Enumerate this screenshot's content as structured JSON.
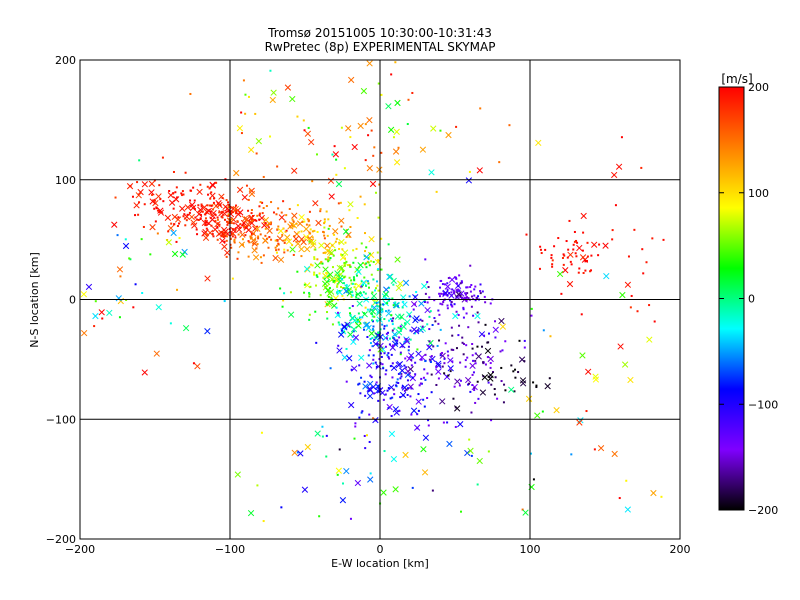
{
  "chart_data": {
    "type": "scatter",
    "title": "Tromsø 20151005 10:30:00-10:31:43",
    "subtitle": "RwPretec (8p) EXPERIMENTAL SKYMAP",
    "xlabel": "E-W location [km]",
    "ylabel": "N-S location [km]",
    "xlim": [
      -200,
      200
    ],
    "ylim": [
      -200,
      200
    ],
    "xticks": [
      -200,
      -100,
      0,
      100,
      200
    ],
    "yticks": [
      -200,
      -100,
      0,
      100,
      200
    ],
    "grid": true,
    "colorbar": {
      "label": "[m/s]",
      "min": -200,
      "max": 200,
      "ticks": [
        200,
        100,
        0,
        -100,
        -200
      ],
      "colormap": [
        "#000000",
        "#7f00ff",
        "#0000ff",
        "#00ffff",
        "#00ff00",
        "#ffff00",
        "#ff7f00",
        "#ff0000"
      ]
    },
    "marker_types": [
      "dot",
      "cross"
    ],
    "clusters": [
      {
        "name": "nw-red",
        "cx": -100,
        "cy": 65,
        "sx": 14,
        "sy": 10,
        "v": 185,
        "sv": 12,
        "n": 170,
        "cross": 0.35
      },
      {
        "name": "nw-orange",
        "cx": -75,
        "cy": 55,
        "sx": 18,
        "sy": 14,
        "v": 150,
        "sv": 15,
        "n": 130,
        "cross": 0.3
      },
      {
        "name": "nw-band-red",
        "cx": -135,
        "cy": 80,
        "sx": 18,
        "sy": 14,
        "v": 190,
        "sv": 10,
        "n": 110,
        "cross": 0.3
      },
      {
        "name": "north-yellow",
        "cx": -40,
        "cy": 50,
        "sx": 18,
        "sy": 18,
        "v": 110,
        "sv": 20,
        "n": 110,
        "cross": 0.25
      },
      {
        "name": "center-green",
        "cx": -25,
        "cy": 15,
        "sx": 16,
        "sy": 16,
        "v": 45,
        "sv": 25,
        "n": 170,
        "cross": 0.25
      },
      {
        "name": "center-cyan",
        "cx": 0,
        "cy": -15,
        "sx": 16,
        "sy": 18,
        "v": -20,
        "sv": 25,
        "n": 190,
        "cross": 0.3
      },
      {
        "name": "south-blue",
        "cx": 10,
        "cy": -60,
        "sx": 20,
        "sy": 25,
        "v": -100,
        "sv": 22,
        "n": 200,
        "cross": 0.3
      },
      {
        "name": "east-blue",
        "cx": 50,
        "cy": 5,
        "sx": 10,
        "sy": 8,
        "v": -135,
        "sv": 15,
        "n": 110,
        "cross": 0.1
      },
      {
        "name": "se-purple",
        "cx": 50,
        "cy": -45,
        "sx": 22,
        "sy": 25,
        "v": -150,
        "sv": 20,
        "n": 130,
        "cross": 0.2
      },
      {
        "name": "se-black",
        "cx": 80,
        "cy": -60,
        "sx": 18,
        "sy": 18,
        "v": -190,
        "sv": 10,
        "n": 45,
        "cross": 0.2
      },
      {
        "name": "east-red",
        "cx": 125,
        "cy": 40,
        "sx": 12,
        "sy": 12,
        "v": 195,
        "sv": 8,
        "n": 55,
        "cross": 0.1
      },
      {
        "name": "far-east-red",
        "cx": 165,
        "cy": 40,
        "sx": 12,
        "sy": 40,
        "v": 195,
        "sv": 8,
        "n": 22,
        "cross": 0.15
      },
      {
        "name": "north-mixed",
        "cx": -20,
        "cy": 140,
        "sx": 45,
        "sy": 25,
        "v": 120,
        "sv": 60,
        "n": 90,
        "cross": 0.45
      },
      {
        "name": "west-scatter",
        "cx": -160,
        "cy": 10,
        "sx": 25,
        "sy": 50,
        "v": 60,
        "sv": 100,
        "n": 45,
        "cross": 0.6
      },
      {
        "name": "south-scatter",
        "cx": 0,
        "cy": -140,
        "sx": 55,
        "sy": 30,
        "v": 0,
        "sv": 90,
        "n": 55,
        "cross": 0.5
      },
      {
        "name": "east-scatter",
        "cx": 130,
        "cy": -60,
        "sx": 30,
        "sy": 50,
        "v": 80,
        "sv": 100,
        "n": 40,
        "cross": 0.5
      }
    ]
  }
}
